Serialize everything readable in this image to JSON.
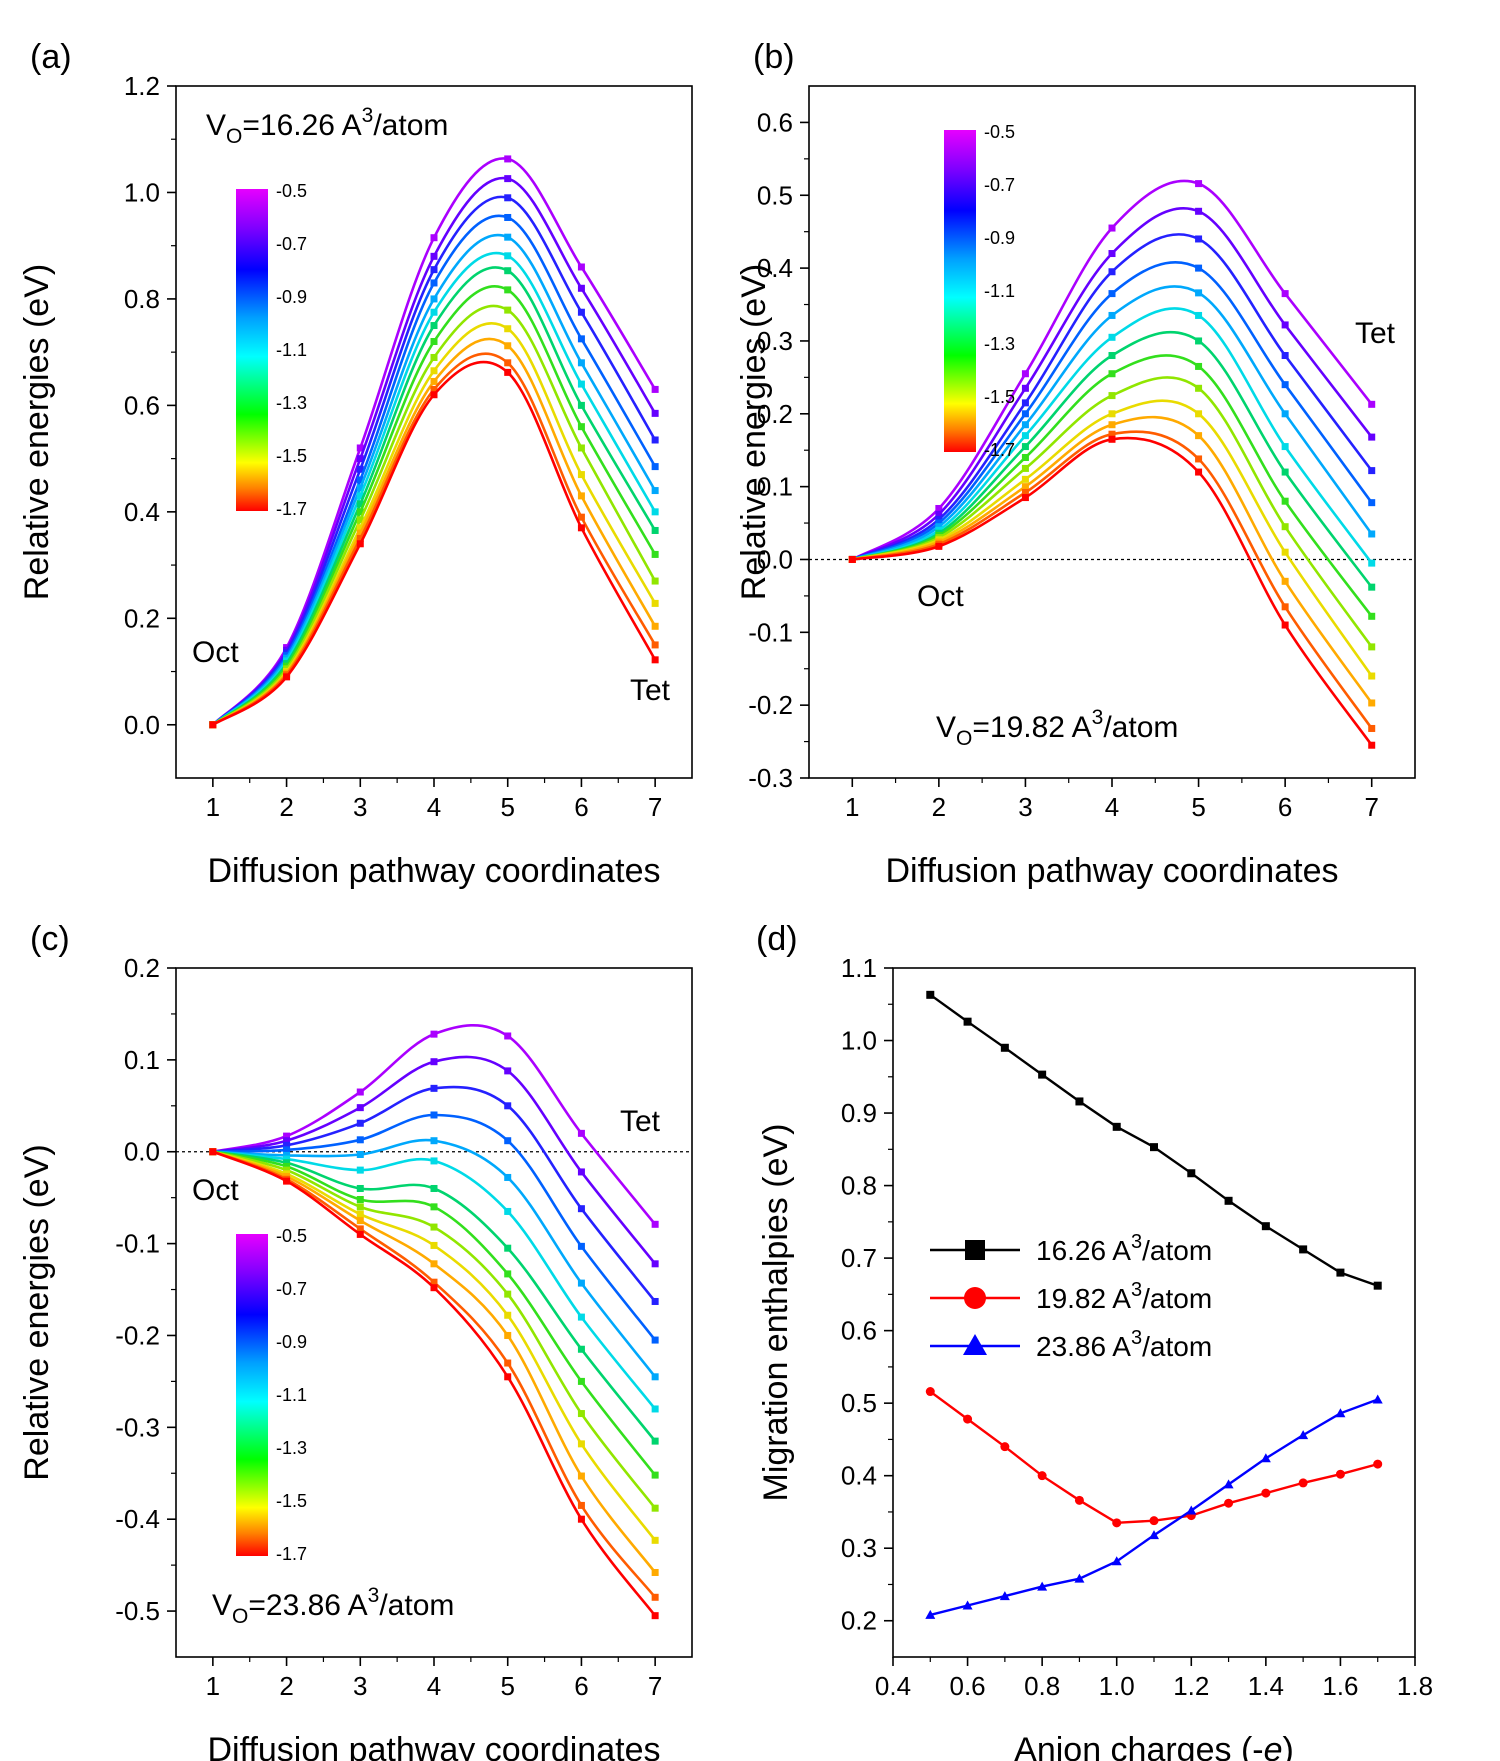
{
  "chart_data": [
    {
      "panel": "(a)",
      "type": "line",
      "xlabel": "Diffusion pathway coordinates",
      "ylabel": "Relative energies (eV)",
      "xlim": [
        0.5,
        7.5
      ],
      "ylim": [
        -0.1,
        1.2
      ],
      "xticks": [
        1,
        2,
        3,
        4,
        5,
        6,
        7
      ],
      "yticks": [
        0.0,
        0.2,
        0.4,
        0.6,
        0.8,
        1.0,
        1.2
      ],
      "ytick_labels": [
        "0.0",
        "0.2",
        "0.4",
        "0.6",
        "0.8",
        "1.0",
        "1.2"
      ],
      "zero_line": false,
      "annotation": {
        "base": "V",
        "sub": "O",
        "mid": "=16.26 A",
        "sup": "3",
        "tail": "/atom"
      },
      "labels": {
        "start": "Oct",
        "end": "Tet"
      },
      "colorbar": {
        "ticks": [
          "-0.5",
          "-0.7",
          "-0.9",
          "-1.1",
          "-1.3",
          "-1.5",
          "-1.7"
        ],
        "range": [
          -1.7,
          -0.5
        ],
        "placement": "upper-left"
      },
      "x": [
        1,
        2,
        3,
        4,
        5,
        6,
        7
      ],
      "series": [
        {
          "charge": -0.5,
          "values": [
            0,
            0.145,
            0.52,
            0.915,
            1.063,
            0.86,
            0.63
          ]
        },
        {
          "charge": -0.6,
          "values": [
            0,
            0.14,
            0.5,
            0.88,
            1.026,
            0.82,
            0.585
          ]
        },
        {
          "charge": -0.7,
          "values": [
            0,
            0.135,
            0.48,
            0.855,
            0.99,
            0.775,
            0.535
          ]
        },
        {
          "charge": -0.8,
          "values": [
            0,
            0.13,
            0.46,
            0.83,
            0.953,
            0.725,
            0.485
          ]
        },
        {
          "charge": -0.9,
          "values": [
            0,
            0.125,
            0.445,
            0.8,
            0.916,
            0.68,
            0.44
          ]
        },
        {
          "charge": -1.0,
          "values": [
            0,
            0.12,
            0.43,
            0.775,
            0.881,
            0.64,
            0.4
          ]
        },
        {
          "charge": -1.1,
          "values": [
            0,
            0.115,
            0.415,
            0.75,
            0.853,
            0.6,
            0.365
          ]
        },
        {
          "charge": -1.2,
          "values": [
            0,
            0.11,
            0.4,
            0.72,
            0.817,
            0.56,
            0.32
          ]
        },
        {
          "charge": -1.3,
          "values": [
            0,
            0.105,
            0.385,
            0.69,
            0.779,
            0.52,
            0.27
          ]
        },
        {
          "charge": -1.4,
          "values": [
            0,
            0.1,
            0.37,
            0.665,
            0.744,
            0.47,
            0.228
          ]
        },
        {
          "charge": -1.5,
          "values": [
            0,
            0.097,
            0.36,
            0.645,
            0.712,
            0.43,
            0.185
          ]
        },
        {
          "charge": -1.6,
          "values": [
            0,
            0.094,
            0.35,
            0.63,
            0.68,
            0.39,
            0.15
          ]
        },
        {
          "charge": -1.7,
          "values": [
            0,
            0.09,
            0.34,
            0.62,
            0.662,
            0.37,
            0.122
          ]
        }
      ]
    },
    {
      "panel": "(b)",
      "type": "line",
      "xlabel": "Diffusion pathway coordinates",
      "ylabel": "Relative energies (eV)",
      "xlim": [
        0.5,
        7.5
      ],
      "ylim": [
        -0.3,
        0.65
      ],
      "xticks": [
        1,
        2,
        3,
        4,
        5,
        6,
        7
      ],
      "yticks": [
        -0.3,
        -0.2,
        -0.1,
        0.0,
        0.1,
        0.2,
        0.3,
        0.4,
        0.5,
        0.6
      ],
      "ytick_labels": [
        "-0.3",
        "-0.2",
        "-0.1",
        "0.0",
        "0.1",
        "0.2",
        "0.3",
        "0.4",
        "0.5",
        "0.6"
      ],
      "zero_line": true,
      "annotation": {
        "base": "V",
        "sub": "O",
        "mid": "=19.82 A",
        "sup": "3",
        "tail": "/atom"
      },
      "labels": {
        "start": "Oct",
        "end": "Tet"
      },
      "colorbar": {
        "ticks": [
          "-0.5",
          "-0.7",
          "-0.9",
          "-1.1",
          "-1.3",
          "-1.5",
          "-1.7"
        ],
        "range": [
          -1.7,
          -0.5
        ],
        "placement": "upper-left"
      },
      "x": [
        1,
        2,
        3,
        4,
        5,
        6,
        7
      ],
      "series": [
        {
          "charge": -0.5,
          "values": [
            0,
            0.07,
            0.255,
            0.455,
            0.516,
            0.365,
            0.213
          ]
        },
        {
          "charge": -0.6,
          "values": [
            0,
            0.062,
            0.235,
            0.42,
            0.478,
            0.322,
            0.168
          ]
        },
        {
          "charge": -0.7,
          "values": [
            0,
            0.055,
            0.215,
            0.395,
            0.44,
            0.28,
            0.122
          ]
        },
        {
          "charge": -0.8,
          "values": [
            0,
            0.05,
            0.2,
            0.365,
            0.4,
            0.24,
            0.078
          ]
        },
        {
          "charge": -0.9,
          "values": [
            0,
            0.045,
            0.185,
            0.335,
            0.366,
            0.2,
            0.035
          ]
        },
        {
          "charge": -1.0,
          "values": [
            0,
            0.04,
            0.17,
            0.305,
            0.335,
            0.155,
            -0.005
          ]
        },
        {
          "charge": -1.1,
          "values": [
            0,
            0.036,
            0.155,
            0.28,
            0.3,
            0.12,
            -0.038
          ]
        },
        {
          "charge": -1.2,
          "values": [
            0,
            0.033,
            0.14,
            0.255,
            0.265,
            0.08,
            -0.078
          ]
        },
        {
          "charge": -1.3,
          "values": [
            0,
            0.03,
            0.125,
            0.225,
            0.235,
            0.045,
            -0.12
          ]
        },
        {
          "charge": -1.4,
          "values": [
            0,
            0.027,
            0.11,
            0.2,
            0.2,
            0.01,
            -0.16
          ]
        },
        {
          "charge": -1.5,
          "values": [
            0,
            0.024,
            0.1,
            0.185,
            0.17,
            -0.03,
            -0.197
          ]
        },
        {
          "charge": -1.6,
          "values": [
            0,
            0.021,
            0.092,
            0.172,
            0.138,
            -0.065,
            -0.232
          ]
        },
        {
          "charge": -1.7,
          "values": [
            0,
            0.018,
            0.085,
            0.165,
            0.12,
            -0.09,
            -0.255
          ]
        }
      ]
    },
    {
      "panel": "(c)",
      "type": "line",
      "xlabel": "Diffusion pathway coordinates",
      "ylabel": "Relative energies (eV)",
      "xlim": [
        0.5,
        7.5
      ],
      "ylim": [
        -0.55,
        0.2
      ],
      "xticks": [
        1,
        2,
        3,
        4,
        5,
        6,
        7
      ],
      "yticks": [
        -0.5,
        -0.4,
        -0.3,
        -0.2,
        -0.1,
        0.0,
        0.1,
        0.2
      ],
      "ytick_labels": [
        "-0.5",
        "-0.4",
        "-0.3",
        "-0.2",
        "-0.1",
        "0.0",
        "0.1",
        "0.2"
      ],
      "zero_line": true,
      "annotation": {
        "base": "V",
        "sub": "O",
        "mid": "=23.86 A",
        "sup": "3",
        "tail": "/atom"
      },
      "labels": {
        "start": "Oct",
        "end": "Tet"
      },
      "colorbar": {
        "ticks": [
          "-0.5",
          "-0.7",
          "-0.9",
          "-1.1",
          "-1.3",
          "-1.5",
          "-1.7"
        ],
        "range": [
          -1.7,
          -0.5
        ],
        "placement": "lower-left"
      },
      "x": [
        1,
        2,
        3,
        4,
        5,
        6,
        7
      ],
      "series": [
        {
          "charge": -0.5,
          "values": [
            0,
            0.017,
            0.065,
            0.128,
            0.126,
            0.02,
            -0.079
          ]
        },
        {
          "charge": -0.6,
          "values": [
            0,
            0.012,
            0.048,
            0.098,
            0.088,
            -0.022,
            -0.122
          ]
        },
        {
          "charge": -0.7,
          "values": [
            0,
            0.007,
            0.031,
            0.069,
            0.05,
            -0.062,
            -0.163
          ]
        },
        {
          "charge": -0.8,
          "values": [
            0,
            0.002,
            0.013,
            0.04,
            0.012,
            -0.103,
            -0.205
          ]
        },
        {
          "charge": -0.9,
          "values": [
            0,
            -0.004,
            -0.003,
            0.012,
            -0.028,
            -0.143,
            -0.245
          ]
        },
        {
          "charge": -1.0,
          "values": [
            0,
            -0.008,
            -0.02,
            -0.01,
            -0.065,
            -0.18,
            -0.28
          ]
        },
        {
          "charge": -1.1,
          "values": [
            0,
            -0.012,
            -0.04,
            -0.04,
            -0.105,
            -0.215,
            -0.315
          ]
        },
        {
          "charge": -1.2,
          "values": [
            0,
            -0.016,
            -0.052,
            -0.06,
            -0.133,
            -0.25,
            -0.352
          ]
        },
        {
          "charge": -1.3,
          "values": [
            0,
            -0.02,
            -0.06,
            -0.082,
            -0.155,
            -0.285,
            -0.388
          ]
        },
        {
          "charge": -1.4,
          "values": [
            0,
            -0.024,
            -0.068,
            -0.102,
            -0.178,
            -0.318,
            -0.423
          ]
        },
        {
          "charge": -1.5,
          "values": [
            0,
            -0.027,
            -0.075,
            -0.122,
            -0.2,
            -0.353,
            -0.458
          ]
        },
        {
          "charge": -1.6,
          "values": [
            0,
            -0.03,
            -0.084,
            -0.142,
            -0.23,
            -0.385,
            -0.485
          ]
        },
        {
          "charge": -1.7,
          "values": [
            0,
            -0.032,
            -0.09,
            -0.148,
            -0.245,
            -0.4,
            -0.505
          ]
        }
      ]
    },
    {
      "panel": "(d)",
      "type": "line",
      "xlabel": "Anion charges (-e)",
      "ylabel": "Migration enthalpies (eV)",
      "xlim": [
        0.4,
        1.8
      ],
      "ylim": [
        0.15,
        1.1
      ],
      "xticks": [
        0.4,
        0.6,
        0.8,
        1.0,
        1.2,
        1.4,
        1.6,
        1.8
      ],
      "xtick_labels": [
        "0.4",
        "0.6",
        "0.8",
        "1.0",
        "1.2",
        "1.4",
        "1.6",
        "1.8"
      ],
      "yticks": [
        0.2,
        0.3,
        0.4,
        0.5,
        0.6,
        0.7,
        0.8,
        0.9,
        1.0,
        1.1
      ],
      "ytick_labels": [
        "0.2",
        "0.3",
        "0.4",
        "0.5",
        "0.6",
        "0.7",
        "0.8",
        "0.9",
        "1.0",
        "1.1"
      ],
      "legend_placement": "center-left",
      "x": [
        0.5,
        0.6,
        0.7,
        0.8,
        0.9,
        1.0,
        1.1,
        1.2,
        1.3,
        1.4,
        1.5,
        1.6,
        1.7
      ],
      "series": [
        {
          "name_base": "16.26 A",
          "name_sup": "3",
          "name_tail": "/atom",
          "color": "#000000",
          "marker": "square",
          "values": [
            1.063,
            1.026,
            0.99,
            0.953,
            0.916,
            0.881,
            0.853,
            0.817,
            0.779,
            0.744,
            0.712,
            0.68,
            0.662
          ]
        },
        {
          "name_base": "19.82 A",
          "name_sup": "3",
          "name_tail": "/atom",
          "color": "#ff0000",
          "marker": "circle",
          "values": [
            0.516,
            0.478,
            0.44,
            0.4,
            0.366,
            0.335,
            0.338,
            0.345,
            0.362,
            0.376,
            0.39,
            0.402,
            0.416
          ]
        },
        {
          "name_base": "23.86 A",
          "name_sup": "3",
          "name_tail": "/atom",
          "color": "#0000ff",
          "marker": "triangle",
          "values": [
            0.208,
            0.221,
            0.234,
            0.247,
            0.258,
            0.282,
            0.318,
            0.352,
            0.388,
            0.424,
            0.456,
            0.486,
            0.505
          ]
        }
      ]
    }
  ]
}
